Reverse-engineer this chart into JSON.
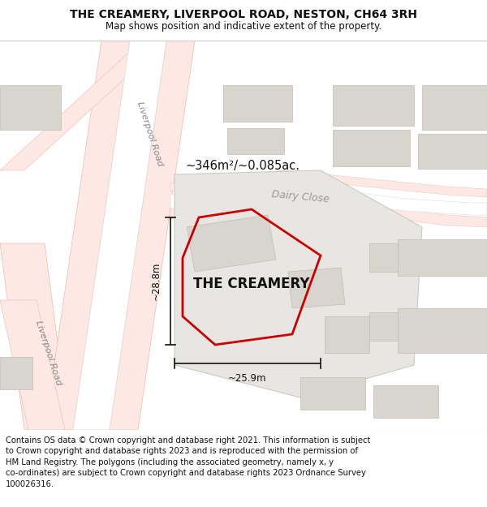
{
  "title": "THE CREAMERY, LIVERPOOL ROAD, NESTON, CH64 3RH",
  "subtitle": "Map shows position and indicative extent of the property.",
  "footer": "Contains OS data © Crown copyright and database right 2021. This information is subject to Crown copyright and database rights 2023 and is reproduced with the permission of HM Land Registry. The polygons (including the associated geometry, namely x, y co-ordinates) are subject to Crown copyright and database rights 2023 Ordnance Survey 100026316.",
  "area_label": "~346m²/~0.085ac.",
  "property_label": "THE CREAMERY",
  "dim_width": "~25.9m",
  "dim_height": "~28.8m",
  "road_label_upper": "Liverpool Road",
  "road_label_lower": "Liverpool Road",
  "street_label": "Dairy Close",
  "map_bg": "#f8f7f5",
  "building_fill": "#d8d5ce",
  "building_edge": "#c0bdb5",
  "plot_fill": "#e8e6e2",
  "plot_edge": "#c8c5be",
  "road_white_fill": "#ffffff",
  "road_white_edge": "#e0ddd8",
  "property_color": "#cc0000",
  "property_lw": 2.0,
  "dim_color": "#111111",
  "text_color": "#111111",
  "pink_line": "#f0b8b0",
  "pink_fill": "#fde8e4",
  "road_label_color": "#888888",
  "title_fontsize": 10,
  "subtitle_fontsize": 8.5,
  "footer_fontsize": 7.2
}
